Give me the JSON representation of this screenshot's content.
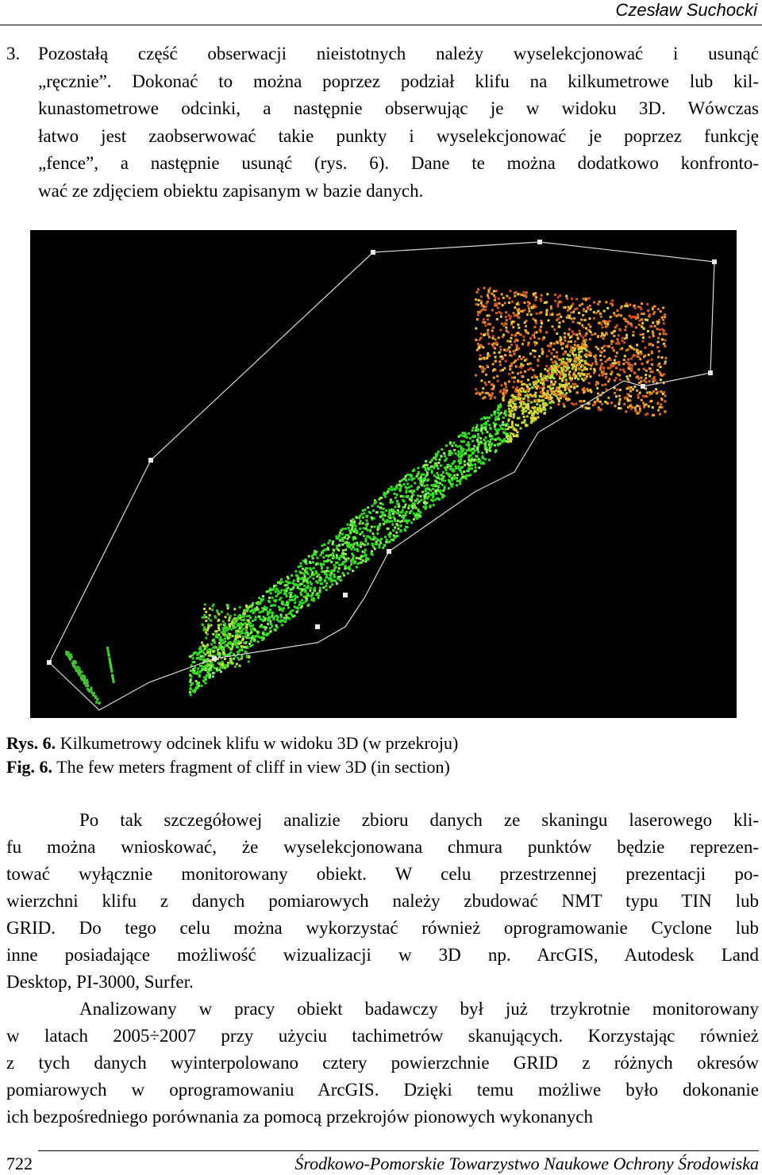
{
  "header": {
    "author": "Czesław Suchocki"
  },
  "list_item": {
    "number": "3.",
    "lines": [
      "Pozostałą część obserwacji nieistotnych należy wyselekcjonować i usunąć",
      "„ręcznie”. Dokonać to można poprzez podział klifu na kilkumetrowe lub kil-",
      "kunastometrowe odcinki, a następnie obserwując je w widoku 3D. Wówczas",
      "łatwo jest zaobserwować takie punkty i wyselekcjonować je poprzez funkcję",
      "„fence”, a następnie usunąć (rys. 6). Dane te można dodatkowo konfronto-",
      "wać ze zdjęciem obiektu zapisanym w bazie danych."
    ]
  },
  "figure": {
    "caption_pl": {
      "label": "Rys. 6.",
      "text": "Kilkumetrowy odcinek klifu w widoku 3D (w przekroju)"
    },
    "caption_en": {
      "label": "Fig. 6.",
      "text": "The few meters fragment of cliff in view 3D (in section)"
    }
  },
  "paragraphs": [
    {
      "lines": [
        "Po tak szczegółowej analizie zbioru danych ze skaningu laserowego kli-",
        "fu można wnioskować, że wyselekcjonowana chmura punktów będzie reprezen-",
        "tować wyłącznie monitorowany obiekt. W celu przestrzennej prezentacji po-",
        "wierzchni klifu z danych pomiarowych należy zbudować NMT typu TIN lub",
        "GRID. Do tego celu można wykorzystać również oprogramowanie Cyclone lub",
        "inne posiadające możliwość wizualizacji w 3D np. ArcGIS, Autodesk Land",
        "Desktop, PI-3000, Surfer."
      ]
    },
    {
      "lines": [
        "Analizowany w pracy obiekt badawczy był już trzykrotnie monitorowany",
        "w latach 2005÷2007 przy użyciu tachimetrów skanujących. Korzystając również",
        "z tych danych wyinterpolowano cztery powierzchnie GRID z różnych okresów",
        "pomiarowych w oprogramowaniu ArcGIS. Dzięki temu możliwe było dokonanie",
        "ich bezpośredniego porównania za pomocą przekrojów pionowych wykonanych"
      ]
    }
  ],
  "footer": {
    "page": "722",
    "journal": "Środkowo-Pomorskie Towarzystwo Naukowe Ochrony Środowiska"
  }
}
